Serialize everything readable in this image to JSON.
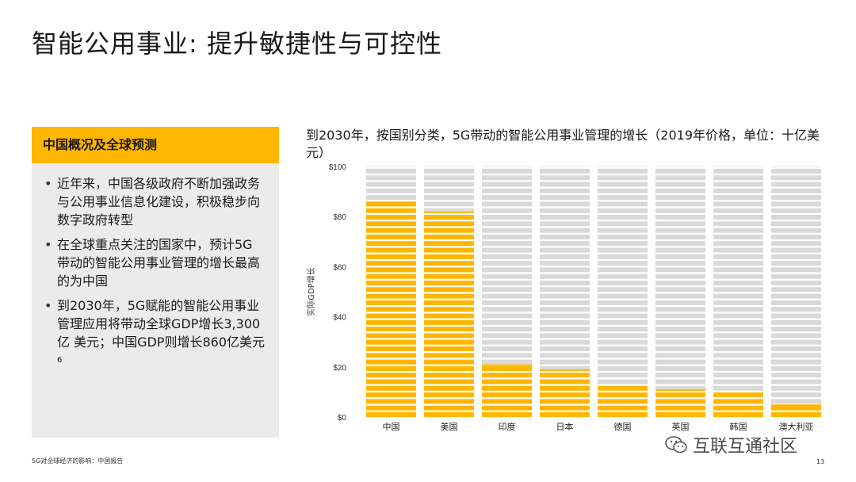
{
  "page": {
    "title": "智能公用事业: 提升敏捷性与可控性",
    "footer": "5G对全球经济的影响：中国报告",
    "page_number": "13",
    "watermark": "互联互通社区"
  },
  "panel": {
    "header": "中国概况及全球预测",
    "bullets": [
      "近年来，中国各级政府不断加强政务与公用事业信息化建设，积极稳步向数字政府转型",
      "在全球重点关注的国家中，预计5G带动的智能公用事业管理的增长最高的为中国",
      "到2030年，5G赋能的智能公用事业管理应用将带动全球GDP增长3,300亿 美元；中国GDP则增长860亿美元"
    ],
    "bullet3_sup": "6"
  },
  "colors": {
    "accent": "#ffb600",
    "bar_fill": "#ffb600",
    "bar_background": "#d9d9d9"
  },
  "chart_data": {
    "type": "bar",
    "title": "到2030年，按国别分类，5G带动的智能公用事业管理的增长（2019年价格，单位：十亿美元）",
    "xlabel": "",
    "ylabel": "实际GDP增长",
    "ylim": [
      0,
      100
    ],
    "yticks": [
      0,
      20,
      40,
      60,
      80,
      100
    ],
    "ytick_labels": [
      "$0",
      "$20",
      "$40",
      "$60",
      "$80",
      "$100"
    ],
    "categories": [
      "中国",
      "美国",
      "印度",
      "日本",
      "德国",
      "英国",
      "韩国",
      "澳大利亚"
    ],
    "values": [
      86,
      82,
      21,
      19,
      12,
      11,
      9,
      5
    ],
    "background_max": 100
  }
}
